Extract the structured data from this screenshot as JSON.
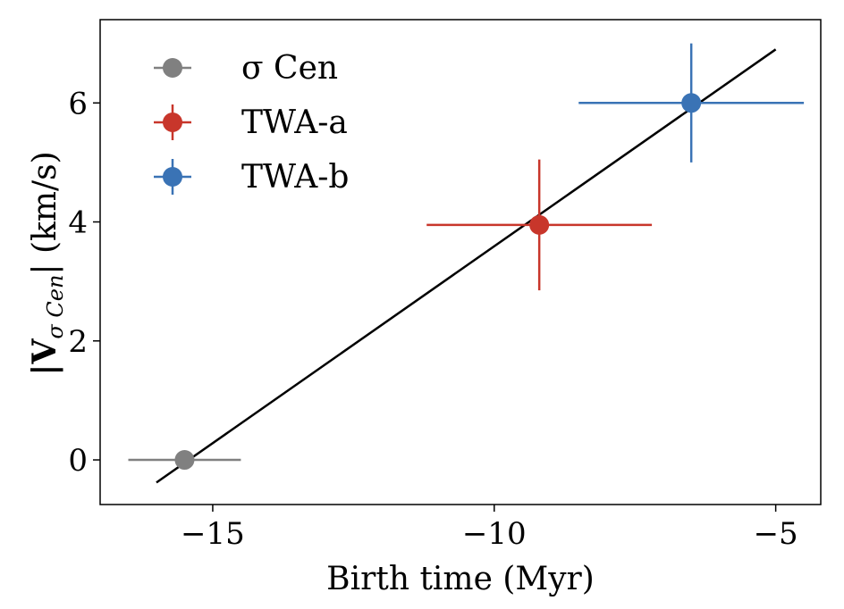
{
  "chart_data": {
    "type": "scatter",
    "xlabel": "Birth time (Myr)",
    "ylabel": "|V σ Cen| (km/s)",
    "ylabel_main": "|V",
    "ylabel_sub": "σ Cen",
    "ylabel_tail": "| (km/s)",
    "xlim": [
      -17,
      -4.2
    ],
    "ylim": [
      -0.75,
      7.4
    ],
    "xticks": [
      -15,
      -10,
      -5
    ],
    "xtick_labels": [
      "−15",
      "−10",
      "−5"
    ],
    "yticks": [
      0,
      2,
      4,
      6
    ],
    "ytick_labels": [
      "0",
      "2",
      "4",
      "6"
    ],
    "grid": false,
    "legend_position": "top-left",
    "series": [
      {
        "name": "σ Cen",
        "color": "#808080",
        "x": -15.5,
        "y": 0.0,
        "xerr": 1.0,
        "yerr": 0
      },
      {
        "name": "TWA-a",
        "color": "#c8362b",
        "x": -9.2,
        "y": 3.95,
        "xerr": 2.0,
        "yerr": 1.1
      },
      {
        "name": "TWA-b",
        "color": "#3a73b5",
        "x": -6.5,
        "y": 6.0,
        "xerr": 2.0,
        "yerr": 1.0
      }
    ],
    "fit_line": {
      "x": [
        -16.0,
        -5.0
      ],
      "y": [
        -0.38,
        6.9
      ],
      "color": "#000000"
    }
  }
}
